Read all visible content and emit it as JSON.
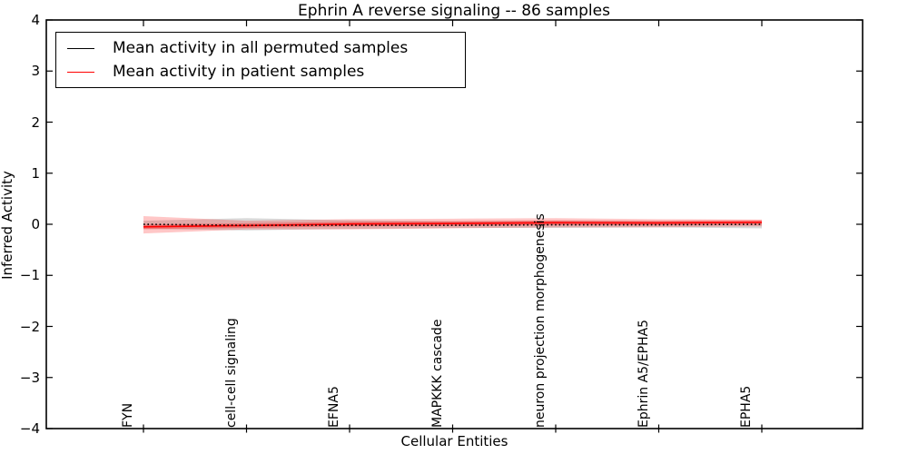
{
  "figure": {
    "title": "Ephrin A  reverse signaling -- 86 samples",
    "xlabel": "Cellular Entities",
    "ylabel": "Inferred Activity",
    "background_color": "#ffffff",
    "axis_color": "#000000"
  },
  "legend": {
    "position": "upper left",
    "items": [
      {
        "label": "Mean activity in all permuted samples",
        "color": "#000000"
      },
      {
        "label": "Mean activity in patient samples",
        "color": "#ff0000"
      }
    ]
  },
  "chart_data": {
    "type": "line",
    "title": "Ephrin A  reverse signaling -- 86 samples",
    "xlabel": "Cellular Entities",
    "ylabel": "Inferred Activity",
    "grid": false,
    "legend_position": "upper left",
    "ylim": [
      -4,
      4
    ],
    "yticks": [
      4,
      3,
      2,
      1,
      0,
      -1,
      -2,
      -3,
      -4
    ],
    "ytick_labels": [
      "4",
      "3",
      "2",
      "1",
      "0",
      "−1",
      "−2",
      "−3",
      "−4"
    ],
    "categories": [
      "FYN",
      "cell-cell signaling",
      "EFNA5",
      "MAPKKK cascade",
      "neuron projection morphogenesis",
      "Ephrin A5/EPHA5",
      "EPHA5"
    ],
    "series": [
      {
        "name": "Mean activity in all permuted samples",
        "color": "#000000",
        "line_style": "dotted",
        "values": [
          0.0,
          -0.02,
          -0.02,
          -0.02,
          -0.01,
          -0.01,
          0.0
        ],
        "band_upper": [
          0.07,
          0.12,
          0.08,
          0.06,
          0.07,
          0.06,
          0.05
        ],
        "band_lower": [
          -0.09,
          -0.12,
          -0.09,
          -0.07,
          -0.07,
          -0.06,
          -0.08
        ],
        "band_color": "rgba(0,0,0,0.15)"
      },
      {
        "name": "Mean activity in patient samples",
        "color": "#ff0000",
        "line_style": "solid",
        "values": [
          -0.05,
          -0.025,
          0.005,
          0.015,
          0.03,
          0.025,
          0.04
        ],
        "band_upper": [
          0.16,
          0.07,
          0.1,
          0.11,
          0.12,
          0.1,
          0.09
        ],
        "band_lower": [
          -0.18,
          -0.1,
          -0.1,
          -0.08,
          -0.06,
          -0.06,
          -0.04
        ],
        "band_color": "rgba(255,0,0,0.22)",
        "band_inner_upper": [
          -0.005,
          0.02,
          0.05,
          0.06,
          0.075,
          0.07,
          0.085
        ],
        "band_inner_lower": [
          -0.095,
          -0.07,
          -0.04,
          -0.03,
          -0.015,
          -0.02,
          -0.005
        ],
        "band_inner_color": "rgba(255,0,0,0.30)"
      }
    ]
  }
}
